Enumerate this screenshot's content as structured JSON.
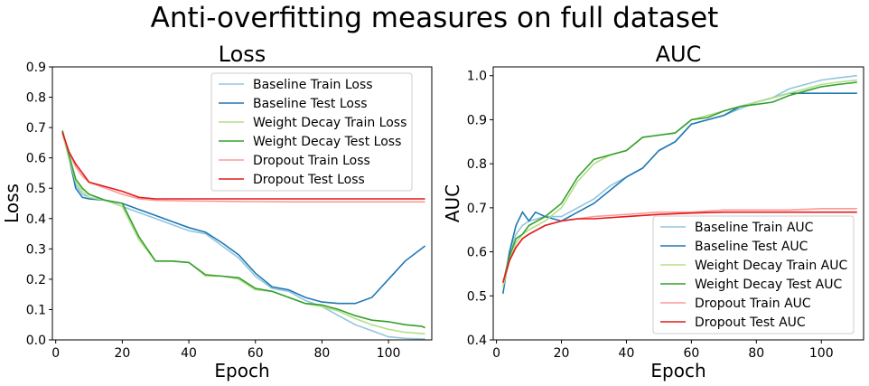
{
  "figure": {
    "title": "Anti-overfitting measures on full dataset"
  },
  "chart_data": [
    {
      "type": "line",
      "title": "Loss",
      "xlabel": "Epoch",
      "ylabel": "Loss",
      "xlim": [
        -1,
        113
      ],
      "ylim": [
        0,
        0.9
      ],
      "xticks": [
        0,
        20,
        40,
        60,
        80,
        100
      ],
      "yticks": [
        0.0,
        0.1,
        0.2,
        0.3,
        0.4,
        0.5,
        0.6,
        0.7,
        0.8,
        0.9
      ],
      "grid": false,
      "legend_position": "upper right",
      "series": [
        {
          "name": "Baseline Train Loss",
          "color": "#92c5de",
          "x": [
            2,
            4,
            6,
            8,
            10,
            15,
            20,
            25,
            30,
            35,
            40,
            45,
            50,
            55,
            60,
            65,
            70,
            75,
            80,
            85,
            90,
            95,
            100,
            105,
            111
          ],
          "y": [
            0.68,
            0.6,
            0.51,
            0.48,
            0.47,
            0.46,
            0.44,
            0.42,
            0.4,
            0.38,
            0.36,
            0.35,
            0.31,
            0.27,
            0.21,
            0.17,
            0.16,
            0.13,
            0.11,
            0.08,
            0.05,
            0.03,
            0.01,
            0.005,
            0.003
          ]
        },
        {
          "name": "Baseline Test Loss",
          "color": "#1f78b4",
          "x": [
            2,
            4,
            6,
            8,
            10,
            15,
            20,
            25,
            30,
            35,
            40,
            45,
            50,
            55,
            60,
            65,
            70,
            75,
            80,
            85,
            90,
            95,
            100,
            105,
            111
          ],
          "y": [
            0.69,
            0.6,
            0.5,
            0.47,
            0.465,
            0.46,
            0.45,
            0.43,
            0.41,
            0.39,
            0.37,
            0.355,
            0.32,
            0.28,
            0.22,
            0.175,
            0.165,
            0.14,
            0.125,
            0.12,
            0.12,
            0.14,
            0.2,
            0.26,
            0.31
          ]
        },
        {
          "name": "Weight Decay Train Loss",
          "color": "#b2df8a",
          "x": [
            2,
            4,
            6,
            8,
            10,
            15,
            20,
            25,
            30,
            35,
            40,
            45,
            50,
            55,
            60,
            65,
            70,
            75,
            80,
            85,
            90,
            95,
            100,
            105,
            111
          ],
          "y": [
            0.68,
            0.6,
            0.52,
            0.49,
            0.47,
            0.46,
            0.44,
            0.33,
            0.26,
            0.26,
            0.255,
            0.21,
            0.21,
            0.2,
            0.165,
            0.16,
            0.14,
            0.12,
            0.11,
            0.095,
            0.07,
            0.05,
            0.035,
            0.025,
            0.02
          ]
        },
        {
          "name": "Weight Decay Test Loss",
          "color": "#33a02c",
          "x": [
            2,
            4,
            6,
            8,
            10,
            15,
            20,
            25,
            30,
            35,
            40,
            45,
            50,
            55,
            60,
            65,
            70,
            75,
            80,
            85,
            90,
            95,
            100,
            105,
            110,
            111
          ],
          "y": [
            0.69,
            0.61,
            0.53,
            0.5,
            0.48,
            0.46,
            0.45,
            0.34,
            0.26,
            0.26,
            0.255,
            0.215,
            0.21,
            0.205,
            0.17,
            0.16,
            0.14,
            0.12,
            0.115,
            0.1,
            0.08,
            0.065,
            0.06,
            0.05,
            0.045,
            0.04
          ]
        },
        {
          "name": "Dropout Train Loss",
          "color": "#fb9a99",
          "x": [
            2,
            4,
            6,
            8,
            10,
            15,
            20,
            25,
            30,
            40,
            50,
            60,
            70,
            80,
            90,
            100,
            111
          ],
          "y": [
            0.68,
            0.62,
            0.57,
            0.54,
            0.52,
            0.5,
            0.48,
            0.465,
            0.46,
            0.458,
            0.457,
            0.456,
            0.455,
            0.455,
            0.455,
            0.455,
            0.455
          ]
        },
        {
          "name": "Dropout Test Loss",
          "color": "#e31a1c",
          "x": [
            2,
            4,
            6,
            8,
            10,
            15,
            20,
            25,
            30,
            40,
            50,
            60,
            70,
            80,
            90,
            100,
            111
          ],
          "y": [
            0.685,
            0.62,
            0.58,
            0.55,
            0.52,
            0.505,
            0.49,
            0.47,
            0.465,
            0.465,
            0.465,
            0.465,
            0.465,
            0.465,
            0.465,
            0.465,
            0.465
          ]
        }
      ]
    },
    {
      "type": "line",
      "title": "AUC",
      "xlabel": "Epoch",
      "ylabel": "AUC",
      "xlim": [
        -1,
        113
      ],
      "ylim": [
        0.4,
        1.02
      ],
      "xticks": [
        0,
        20,
        40,
        60,
        80,
        100
      ],
      "yticks": [
        0.4,
        0.5,
        0.6,
        0.7,
        0.8,
        0.9,
        1.0
      ],
      "grid": false,
      "legend_position": "lower right",
      "series": [
        {
          "name": "Baseline Train AUC",
          "color": "#92c5de",
          "x": [
            2,
            4,
            6,
            8,
            10,
            15,
            20,
            25,
            30,
            35,
            40,
            45,
            50,
            55,
            60,
            65,
            70,
            75,
            80,
            85,
            90,
            95,
            100,
            105,
            111
          ],
          "y": [
            0.52,
            0.6,
            0.64,
            0.66,
            0.67,
            0.68,
            0.68,
            0.7,
            0.72,
            0.75,
            0.77,
            0.79,
            0.83,
            0.85,
            0.89,
            0.9,
            0.91,
            0.925,
            0.94,
            0.95,
            0.97,
            0.98,
            0.99,
            0.995,
            1.0
          ]
        },
        {
          "name": "Baseline Test AUC",
          "color": "#1f78b4",
          "x": [
            2,
            4,
            6,
            8,
            10,
            12,
            15,
            20,
            25,
            30,
            35,
            40,
            45,
            50,
            55,
            60,
            65,
            70,
            75,
            80,
            85,
            90,
            95,
            100,
            105,
            111
          ],
          "y": [
            0.505,
            0.6,
            0.66,
            0.69,
            0.67,
            0.69,
            0.68,
            0.67,
            0.69,
            0.71,
            0.74,
            0.77,
            0.79,
            0.83,
            0.85,
            0.89,
            0.9,
            0.91,
            0.93,
            0.94,
            0.95,
            0.96,
            0.96,
            0.96,
            0.96,
            0.96
          ]
        },
        {
          "name": "Weight Decay Train AUC",
          "color": "#b2df8a",
          "x": [
            2,
            4,
            6,
            8,
            10,
            15,
            20,
            25,
            30,
            35,
            40,
            45,
            50,
            55,
            60,
            65,
            70,
            75,
            80,
            85,
            90,
            95,
            100,
            105,
            111
          ],
          "y": [
            0.52,
            0.58,
            0.62,
            0.64,
            0.65,
            0.67,
            0.7,
            0.76,
            0.8,
            0.82,
            0.83,
            0.86,
            0.865,
            0.87,
            0.9,
            0.91,
            0.92,
            0.93,
            0.94,
            0.95,
            0.96,
            0.97,
            0.98,
            0.985,
            0.99
          ]
        },
        {
          "name": "Weight Decay Test AUC",
          "color": "#33a02c",
          "x": [
            2,
            4,
            6,
            8,
            10,
            15,
            20,
            25,
            30,
            35,
            40,
            45,
            50,
            55,
            60,
            65,
            70,
            75,
            80,
            85,
            90,
            95,
            100,
            105,
            111
          ],
          "y": [
            0.53,
            0.59,
            0.63,
            0.64,
            0.66,
            0.68,
            0.71,
            0.77,
            0.81,
            0.82,
            0.83,
            0.86,
            0.865,
            0.87,
            0.9,
            0.905,
            0.92,
            0.93,
            0.935,
            0.94,
            0.955,
            0.965,
            0.975,
            0.98,
            0.985
          ]
        },
        {
          "name": "Dropout Train AUC",
          "color": "#fb9a99",
          "x": [
            2,
            4,
            6,
            8,
            10,
            15,
            20,
            25,
            30,
            40,
            50,
            60,
            70,
            80,
            90,
            100,
            111
          ],
          "y": [
            0.53,
            0.58,
            0.61,
            0.63,
            0.64,
            0.66,
            0.67,
            0.675,
            0.68,
            0.685,
            0.69,
            0.69,
            0.695,
            0.695,
            0.695,
            0.698,
            0.698
          ]
        },
        {
          "name": "Dropout Test AUC",
          "color": "#e31a1c",
          "x": [
            2,
            4,
            6,
            8,
            10,
            15,
            20,
            25,
            30,
            40,
            50,
            60,
            70,
            80,
            90,
            100,
            111
          ],
          "y": [
            0.53,
            0.58,
            0.61,
            0.63,
            0.64,
            0.66,
            0.67,
            0.675,
            0.675,
            0.68,
            0.685,
            0.688,
            0.69,
            0.69,
            0.69,
            0.69,
            0.69
          ]
        }
      ]
    }
  ]
}
